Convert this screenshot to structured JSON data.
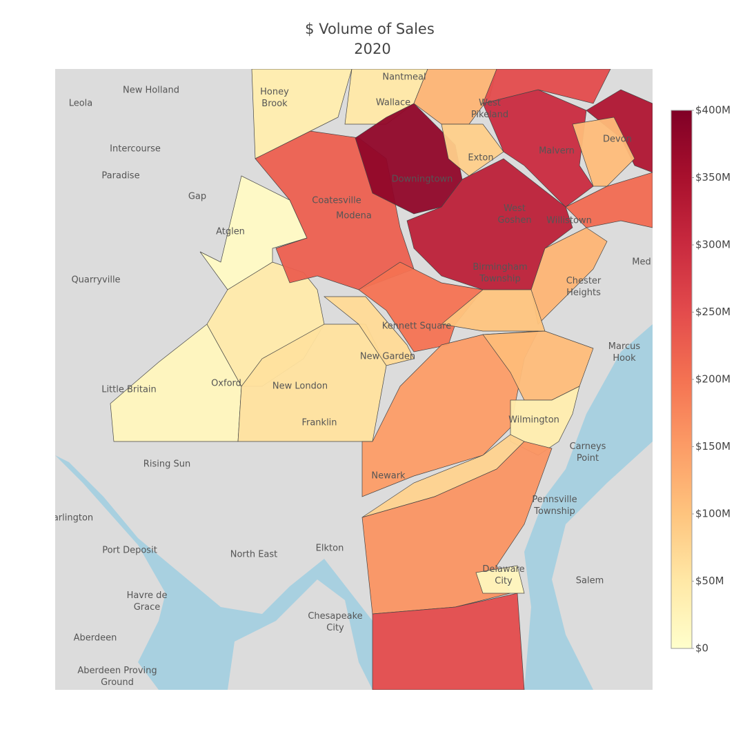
{
  "chart_data": {
    "type": "choropleth",
    "title": "$ Volume of Sales",
    "subtitle": "2020",
    "values": [
      10000000,
      20000000,
      45000000,
      60000000,
      70000000,
      40000000,
      50000000,
      225000000,
      380000000,
      120000000,
      85000000,
      300000000,
      250000000,
      340000000,
      110000000,
      320000000,
      210000000,
      120000000,
      200000000,
      100000000,
      150000000,
      110000000,
      40000000,
      80000000,
      160000000,
      20000000,
      250000000
    ],
    "colorscale": [
      "#ffffcc",
      "#ffe8a6",
      "#fec47e",
      "#fc9c66",
      "#f47252",
      "#e34b4c",
      "#c92a3f",
      "#a8102d",
      "#800026"
    ],
    "zlim": [
      0,
      400000000
    ],
    "zticks": [
      {
        "value": 0,
        "label": "$0"
      },
      {
        "value": 50000000,
        "label": "$50M"
      },
      {
        "value": 100000000,
        "label": "$100M"
      },
      {
        "value": 150000000,
        "label": "$150M"
      },
      {
        "value": 200000000,
        "label": "$200M"
      },
      {
        "value": 250000000,
        "label": "$250M"
      },
      {
        "value": 300000000,
        "label": "$300M"
      },
      {
        "value": 350000000,
        "label": "$350M"
      },
      {
        "value": 400000000,
        "label": "$400M"
      }
    ],
    "places": [
      "New Holland",
      "Leola",
      "Honey Brook",
      "Nantmeal",
      "Wallace",
      "West Pikeland",
      "Intercourse",
      "Paradise",
      "Exton",
      "Malvern",
      "Devon",
      "Downingtown",
      "Gap",
      "Coatesville",
      "Modena",
      "West Goshen",
      "Willistown",
      "Atglen",
      "Quarryville",
      "Birmingham Township",
      "Chester Heights",
      "Kennett Square",
      "Marcus Hook",
      "New Garden",
      "Oxford",
      "New London",
      "Little Britain",
      "Wilmington",
      "Franklin",
      "Carneys Point",
      "Rising Sun",
      "Newark",
      "Pennsville Township",
      "arlington",
      "Port Deposit",
      "North East",
      "Elkton",
      "Delaware City",
      "Salem",
      "Havre de Grace",
      "Chesapeake City",
      "Aberdeen",
      "Aberdeen Proving Ground",
      "Med"
    ]
  }
}
